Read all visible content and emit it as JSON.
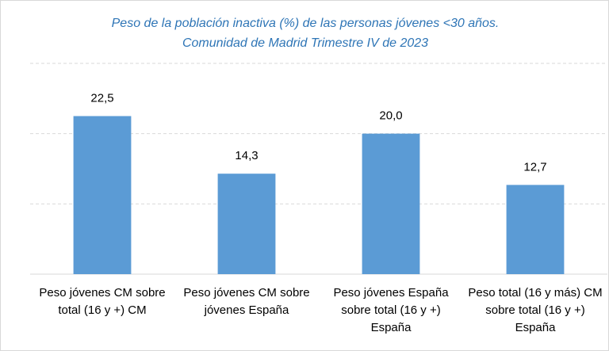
{
  "chart_data": {
    "type": "bar",
    "title": "Peso de la población inactiva (%) de las personas jóvenes <30 años.",
    "subtitle": "Comunidad de Madrid Trimestre IV de 2023",
    "categories": [
      "Peso jóvenes CM sobre total (16 y +) CM",
      "Peso jóvenes CM sobre jóvenes España",
      "Peso jóvenes España sobre total (16 y +) España",
      "Peso total (16 y más) CM sobre total (16 y +) España"
    ],
    "values": [
      22.5,
      14.3,
      20.0,
      12.7
    ],
    "value_labels": [
      "22,5",
      "14,3",
      "20,0",
      "12,7"
    ],
    "color": "#5b9bd5",
    "ylim": [
      0,
      30
    ],
    "yticks": [
      0,
      10,
      20,
      30
    ],
    "grid": true
  }
}
